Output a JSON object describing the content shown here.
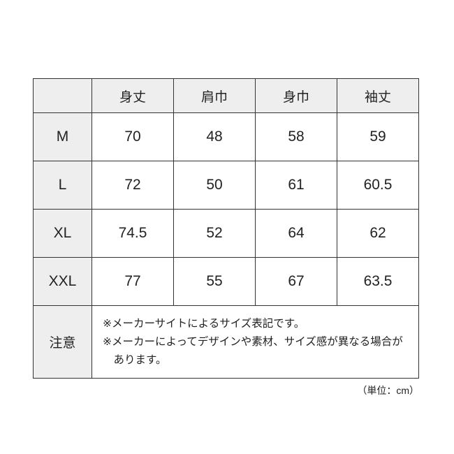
{
  "headers": [
    "",
    "身丈",
    "肩巾",
    "身巾",
    "袖丈"
  ],
  "rows": [
    {
      "size": "M",
      "values": [
        "70",
        "48",
        "58",
        "59"
      ]
    },
    {
      "size": "L",
      "values": [
        "72",
        "50",
        "61",
        "60.5"
      ]
    },
    {
      "size": "XL",
      "values": [
        "74.5",
        "52",
        "64",
        "62"
      ]
    },
    {
      "size": "XXL",
      "values": [
        "77",
        "55",
        "67",
        "63.5"
      ]
    }
  ],
  "notes": {
    "label": "注意",
    "items": [
      "※メーカーサイトによるサイズ表記です。",
      "※メーカーによってデザインや素材、サイズ感が異なる場合があります。"
    ]
  },
  "unit": "（単位：cm）",
  "colors": {
    "header_bg": "#eeeeee",
    "border": "#333333"
  }
}
